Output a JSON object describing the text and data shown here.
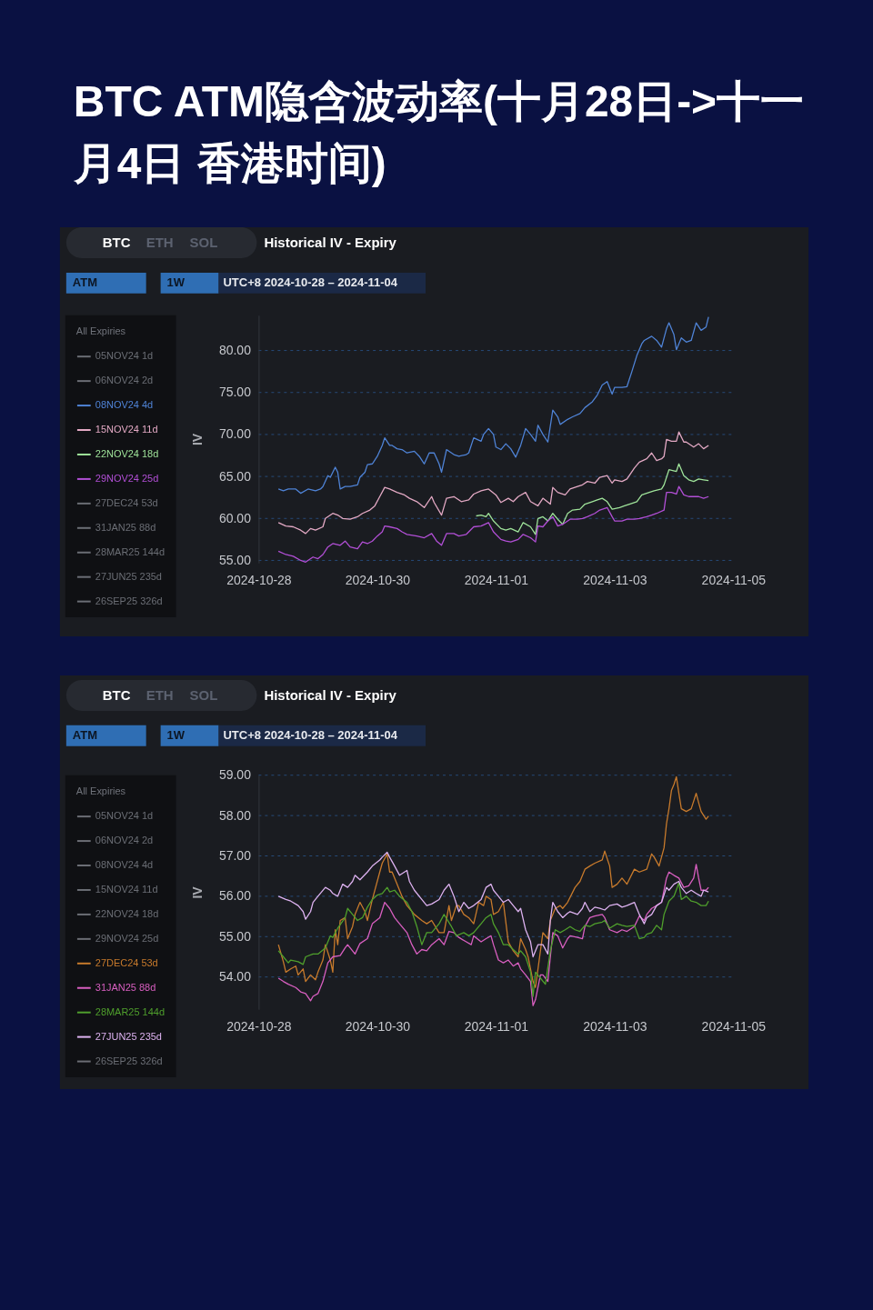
{
  "chart_data": [
    {
      "type": "line",
      "title": "BTC ATM隐含波动率(十月28日->十一月4日 香港时间)",
      "subtitle": "Historical IV - Expiry",
      "ylabel": "IV",
      "legend_title": "All Expiries",
      "legend": "left",
      "grid": "y",
      "annotations": [
        "BTC",
        "ETH",
        "SOL",
        "ATM",
        "1W",
        "UTC+8 2024-10-28 – 2024-11-04"
      ],
      "xlim": [
        "2024-10-28",
        "2024-11-05"
      ],
      "xticks": [
        "2024-10-28",
        "2024-10-30",
        "2024-11-01",
        "2024-11-03",
        "2024-11-05"
      ],
      "ylim": [
        54.7,
        84.2
      ],
      "yticks": [
        {
          "value": 55,
          "label": "55.00"
        },
        {
          "value": 60,
          "label": "60.00"
        },
        {
          "value": 65,
          "label": "65.00"
        },
        {
          "value": 70,
          "label": "70.00"
        },
        {
          "value": 75,
          "label": "75.00"
        },
        {
          "value": 80,
          "label": "80.00"
        }
      ],
      "series": [
        {
          "name": "05NOV24 1d",
          "color": "#6b6e75"
        },
        {
          "name": "06NOV24 2d",
          "color": "#6b6e75"
        },
        {
          "name": "08NOV24 4d",
          "color": "#4f83d6",
          "x": [
            "2024-10-28T08:00",
            "2024-10-28T10:00",
            "2024-10-28T12:00",
            "2024-10-28T15:00",
            "2024-10-28T17:00",
            "2024-10-28T20:00",
            "2024-10-28T23:00",
            "2024-10-29T01:00",
            "2024-10-29T02:00",
            "2024-10-29T04:00",
            "2024-10-29T05:00",
            "2024-10-29T07:00",
            "2024-10-29T08:00",
            "2024-10-29T09:00",
            "2024-10-29T11:00",
            "2024-10-29T13:00",
            "2024-10-29T16:00",
            "2024-10-29T17:00",
            "2024-10-29T19:00",
            "2024-10-29T20:00",
            "2024-10-29T22:00",
            "2024-10-30T00:00",
            "2024-10-30T02:00",
            "2024-10-30T03:00",
            "2024-10-30T05:00",
            "2024-10-30T06:00",
            "2024-10-30T08:00",
            "2024-10-30T10:00",
            "2024-10-30T12:00",
            "2024-10-30T15:00",
            "2024-10-30T17:00",
            "2024-10-30T19:00",
            "2024-10-30T21:00",
            "2024-10-30T23:00",
            "2024-10-31T01:00",
            "2024-10-31T02:00",
            "2024-10-31T04:00",
            "2024-10-31T07:00",
            "2024-10-31T09:00",
            "2024-10-31T12:00",
            "2024-10-31T13:00",
            "2024-10-31T15:00",
            "2024-10-31T18:00",
            "2024-10-31T19:00",
            "2024-10-31T21:00",
            "2024-10-31T23:00",
            "2024-11-01T00:00",
            "2024-11-01T02:00",
            "2024-11-01T04:00",
            "2024-11-01T06:00",
            "2024-11-01T08:00",
            "2024-11-01T10:00",
            "2024-11-01T12:00",
            "2024-11-01T14:00",
            "2024-11-01T16:00",
            "2024-11-01T17:00",
            "2024-11-01T19:00",
            "2024-11-01T21:00",
            "2024-11-01T23:00",
            "2024-11-02T01:00",
            "2024-11-02T02:00",
            "2024-11-02T05:00",
            "2024-11-02T07:00",
            "2024-11-02T10:00",
            "2024-11-02T12:00",
            "2024-11-02T15:00",
            "2024-11-02T17:00",
            "2024-11-02T19:00",
            "2024-11-02T21:00",
            "2024-11-02T23:00",
            "2024-11-03T00:00",
            "2024-11-03T03:00",
            "2024-11-03T05:00",
            "2024-11-03T07:00",
            "2024-11-03T09:00",
            "2024-11-03T11:00",
            "2024-11-03T12:00",
            "2024-11-03T15:00",
            "2024-11-03T17:00",
            "2024-11-03T19:00",
            "2024-11-03T21:00",
            "2024-11-03T22:00",
            "2024-11-04T00:00",
            "2024-11-04T01:00",
            "2024-11-04T03:00",
            "2024-11-04T05:00",
            "2024-11-04T07:00",
            "2024-11-04T09:00",
            "2024-11-04T11:00",
            "2024-11-04T13:00",
            "2024-11-04T14:00"
          ],
          "values": [
            63.5,
            63.3,
            63.5,
            63.5,
            63.0,
            63.5,
            63.3,
            63.5,
            63.8,
            65.1,
            64.9,
            66.1,
            65.5,
            63.5,
            63.8,
            63.8,
            64.0,
            64.9,
            65.5,
            66.4,
            66.5,
            67.4,
            68.7,
            69.6,
            68.7,
            68.7,
            68.3,
            68.2,
            67.8,
            68.0,
            67.4,
            66.5,
            67.8,
            67.8,
            66.5,
            65.5,
            68.2,
            67.6,
            67.4,
            67.6,
            67.8,
            69.6,
            69.2,
            70.0,
            70.7,
            70.0,
            68.5,
            68.2,
            68.9,
            68.3,
            67.3,
            68.7,
            70.7,
            70.0,
            69.2,
            71.1,
            70.0,
            69.1,
            72.9,
            72.1,
            71.2,
            71.8,
            72.1,
            72.5,
            73.2,
            73.9,
            74.7,
            75.9,
            76.3,
            74.8,
            75.6,
            75.6,
            75.7,
            77.5,
            79.4,
            80.8,
            81.2,
            81.7,
            81.2,
            80.4,
            82.6,
            83.3,
            81.9,
            80.1,
            81.5,
            81.0,
            81.2,
            83.3,
            82.4,
            82.8,
            84.0
          ]
        },
        {
          "name": "15NOV24 11d",
          "color": "#e3a9c4",
          "x": [
            "2024-10-28T08:00",
            "2024-10-28T11:00",
            "2024-10-28T14:00",
            "2024-10-28T17:00",
            "2024-10-28T19:00",
            "2024-10-28T21:00",
            "2024-10-28T23:00",
            "2024-10-29T02:00",
            "2024-10-29T03:00",
            "2024-10-29T06:00",
            "2024-10-29T08:00",
            "2024-10-29T10:00",
            "2024-10-29T13:00",
            "2024-10-29T16:00",
            "2024-10-29T18:00",
            "2024-10-29T21:00",
            "2024-10-29T23:00",
            "2024-10-30T01:00",
            "2024-10-30T03:00",
            "2024-10-30T05:00",
            "2024-10-30T08:00",
            "2024-10-30T11:00",
            "2024-10-30T13:00",
            "2024-10-30T16:00",
            "2024-10-30T19:00",
            "2024-10-30T22:00",
            "2024-10-30T23:00",
            "2024-10-31T02:00",
            "2024-10-31T04:00",
            "2024-10-31T07:00",
            "2024-10-31T10:00",
            "2024-10-31T13:00",
            "2024-10-31T15:00",
            "2024-10-31T18:00",
            "2024-10-31T21:00",
            "2024-11-01T00:00",
            "2024-11-01T02:00",
            "2024-11-01T05:00",
            "2024-11-01T07:00",
            "2024-11-01T09:00",
            "2024-11-01T12:00",
            "2024-11-01T14:00",
            "2024-11-01T17:00",
            "2024-11-01T19:00",
            "2024-11-01T22:00",
            "2024-11-01T23:00",
            "2024-11-02T01:00",
            "2024-11-02T04:00",
            "2024-11-02T06:00",
            "2024-11-02T09:00",
            "2024-11-02T11:00",
            "2024-11-02T13:00",
            "2024-11-02T16:00",
            "2024-11-02T18:00",
            "2024-11-02T21:00",
            "2024-11-02T23:00",
            "2024-11-03T00:00",
            "2024-11-03T03:00",
            "2024-11-03T05:00",
            "2024-11-03T08:00",
            "2024-11-03T10:00",
            "2024-11-03T13:00",
            "2024-11-03T15:00",
            "2024-11-03T17:00",
            "2024-11-03T19:00",
            "2024-11-03T20:00",
            "2024-11-03T21:00",
            "2024-11-03T23:00",
            "2024-11-04T01:00",
            "2024-11-04T02:00",
            "2024-11-04T04:00",
            "2024-11-04T05:00",
            "2024-11-04T08:00",
            "2024-11-04T10:00",
            "2024-11-04T12:00",
            "2024-11-04T14:00"
          ],
          "values": [
            59.5,
            59.1,
            59.0,
            58.6,
            58.2,
            58.8,
            58.6,
            59.0,
            60.0,
            60.6,
            60.4,
            60.0,
            59.9,
            60.2,
            60.6,
            61.0,
            61.5,
            62.6,
            63.7,
            63.5,
            63.1,
            62.8,
            62.4,
            62.0,
            61.3,
            62.6,
            61.9,
            60.4,
            62.4,
            62.6,
            62.0,
            62.2,
            62.9,
            63.3,
            63.5,
            62.8,
            61.9,
            62.4,
            62.0,
            62.6,
            63.1,
            62.0,
            61.5,
            62.4,
            61.7,
            63.7,
            63.1,
            62.8,
            63.5,
            63.8,
            64.0,
            64.4,
            64.2,
            64.9,
            65.1,
            64.2,
            64.6,
            64.4,
            64.7,
            66.0,
            66.7,
            67.1,
            67.8,
            66.9,
            67.1,
            67.4,
            69.4,
            69.2,
            69.2,
            70.3,
            69.1,
            69.1,
            68.5,
            68.9,
            68.3,
            68.7
          ]
        },
        {
          "name": "22NOV24 18d",
          "color": "#9fe39a",
          "x": [
            "2024-10-31T16:00",
            "2024-10-31T18:00",
            "2024-10-31T20:00",
            "2024-10-31T21:00",
            "2024-10-31T23:00",
            "2024-11-01T02:00",
            "2024-11-01T04:00",
            "2024-11-01T06:00",
            "2024-11-01T09:00",
            "2024-11-01T11:00",
            "2024-11-01T14:00",
            "2024-11-01T16:00",
            "2024-11-01T17:00",
            "2024-11-01T19:00",
            "2024-11-01T21:00",
            "2024-11-01T23:00",
            "2024-11-02T01:00",
            "2024-11-02T03:00",
            "2024-11-02T05:00",
            "2024-11-02T07:00",
            "2024-11-02T10:00",
            "2024-11-02T12:00",
            "2024-11-02T15:00",
            "2024-11-02T17:00",
            "2024-11-02T19:00",
            "2024-11-02T21:00",
            "2024-11-02T23:00",
            "2024-11-03T02:00",
            "2024-11-03T04:00",
            "2024-11-03T06:00",
            "2024-11-03T09:00",
            "2024-11-03T11:00",
            "2024-11-03T14:00",
            "2024-11-03T16:00",
            "2024-11-03T19:00",
            "2024-11-03T20:00",
            "2024-11-03T22:00",
            "2024-11-04T01:00",
            "2024-11-04T02:00",
            "2024-11-04T04:00",
            "2024-11-04T06:00",
            "2024-11-04T08:00",
            "2024-11-04T10:00",
            "2024-11-04T12:00",
            "2024-11-04T14:00"
          ],
          "values": [
            60.3,
            60.4,
            60.2,
            60.6,
            59.7,
            58.8,
            58.6,
            58.8,
            58.4,
            59.5,
            59.0,
            58.1,
            60.0,
            60.2,
            59.7,
            60.6,
            59.9,
            59.3,
            60.6,
            61.0,
            61.1,
            61.7,
            62.0,
            62.2,
            62.4,
            62.0,
            61.1,
            61.3,
            61.5,
            61.7,
            62.0,
            62.8,
            63.1,
            63.3,
            63.5,
            64.0,
            65.8,
            65.6,
            66.5,
            65.1,
            64.6,
            64.4,
            64.7,
            64.6,
            64.5
          ]
        },
        {
          "name": "29NOV24 25d",
          "color": "#b24fd6",
          "x": [
            "2024-10-28T08:00",
            "2024-10-28T11:00",
            "2024-10-28T14:00",
            "2024-10-28T17:00",
            "2024-10-28T19:00",
            "2024-10-28T22:00",
            "2024-10-29T00:00",
            "2024-10-29T02:00",
            "2024-10-29T04:00",
            "2024-10-29T06:00",
            "2024-10-29T09:00",
            "2024-10-29T11:00",
            "2024-10-29T13:00",
            "2024-10-29T16:00",
            "2024-10-29T18:00",
            "2024-10-29T20:00",
            "2024-10-29T22:00",
            "2024-10-30T00:00",
            "2024-10-30T02:00",
            "2024-10-30T03:00",
            "2024-10-30T05:00",
            "2024-10-30T08:00",
            "2024-10-30T10:00",
            "2024-10-30T12:00",
            "2024-10-30T16:00",
            "2024-10-30T19:00",
            "2024-10-30T22:00",
            "2024-10-31T00:00",
            "2024-10-31T02:00",
            "2024-10-31T04:00",
            "2024-10-31T07:00",
            "2024-10-31T09:00",
            "2024-10-31T12:00",
            "2024-10-31T15:00",
            "2024-10-31T18:00",
            "2024-10-31T21:00",
            "2024-10-31T23:00",
            "2024-11-01T02:00",
            "2024-11-01T04:00",
            "2024-11-01T06:00",
            "2024-11-01T09:00",
            "2024-11-01T11:00",
            "2024-11-01T14:00",
            "2024-11-01T16:00",
            "2024-11-01T17:00",
            "2024-11-01T19:00",
            "2024-11-01T21:00",
            "2024-11-01T23:00",
            "2024-11-02T01:00",
            "2024-11-02T03:00",
            "2024-11-02T06:00",
            "2024-11-02T09:00",
            "2024-11-02T11:00",
            "2024-11-02T13:00",
            "2024-11-02T16:00",
            "2024-11-02T18:00",
            "2024-11-02T21:00",
            "2024-11-02T23:00",
            "2024-11-03T00:00",
            "2024-11-03T03:00",
            "2024-11-03T05:00",
            "2024-11-03T08:00",
            "2024-11-03T10:00",
            "2024-11-03T13:00",
            "2024-11-03T15:00",
            "2024-11-03T17:00",
            "2024-11-03T20:00",
            "2024-11-03T21:00",
            "2024-11-03T23:00",
            "2024-11-04T01:00",
            "2024-11-04T02:00",
            "2024-11-04T04:00",
            "2024-11-04T06:00",
            "2024-11-04T08:00",
            "2024-11-04T10:00",
            "2024-11-04T12:00",
            "2024-11-04T14:00"
          ],
          "values": [
            56.1,
            55.7,
            55.5,
            55.0,
            54.8,
            55.4,
            55.2,
            55.7,
            56.6,
            57.0,
            56.8,
            57.3,
            56.6,
            56.4,
            57.2,
            57.0,
            57.3,
            57.9,
            58.4,
            59.1,
            59.0,
            58.8,
            58.4,
            58.1,
            57.9,
            57.7,
            58.2,
            57.3,
            56.8,
            58.2,
            58.2,
            57.9,
            58.1,
            59.0,
            59.1,
            59.5,
            58.4,
            57.5,
            57.3,
            57.2,
            57.5,
            58.1,
            57.7,
            57.2,
            59.1,
            59.0,
            59.7,
            60.2,
            59.1,
            59.3,
            59.9,
            59.9,
            60.0,
            60.2,
            60.6,
            61.0,
            61.3,
            60.2,
            59.7,
            59.7,
            59.9,
            59.9,
            60.0,
            60.2,
            60.4,
            60.6,
            61.0,
            63.1,
            63.1,
            62.9,
            63.8,
            62.8,
            62.6,
            62.6,
            62.6,
            62.4,
            62.6
          ]
        },
        {
          "name": "27DEC24 53d",
          "color": "#6b6e75"
        },
        {
          "name": "31JAN25 88d",
          "color": "#6b6e75"
        },
        {
          "name": "28MAR25 144d",
          "color": "#6b6e75"
        },
        {
          "name": "27JUN25 235d",
          "color": "#6b6e75"
        },
        {
          "name": "26SEP25 326d",
          "color": "#6b6e75"
        }
      ]
    },
    {
      "type": "line",
      "title": "Historical IV - Expiry",
      "ylabel": "IV",
      "legend_title": "All Expiries",
      "legend": "left",
      "grid": "y",
      "annotations": [
        "BTC",
        "ETH",
        "SOL",
        "ATM",
        "1W",
        "UTC+8 2024-10-28 – 2024-11-04"
      ],
      "xlim": [
        "2024-10-28",
        "2024-11-05"
      ],
      "xticks": [
        "2024-10-28",
        "2024-10-30",
        "2024-11-01",
        "2024-11-03",
        "2024-11-05"
      ],
      "ylim": [
        53.2,
        59
      ],
      "yticks": [
        {
          "value": 54,
          "label": "54.00"
        },
        {
          "value": 55,
          "label": "55.00"
        },
        {
          "value": 56,
          "label": "56.00"
        },
        {
          "value": 57,
          "label": "57.00"
        },
        {
          "value": 58,
          "label": "58.00"
        },
        {
          "value": 59,
          "label": "59.00"
        }
      ],
      "series": [
        {
          "name": "05NOV24 1d",
          "color": "#6b6e75"
        },
        {
          "name": "06NOV24 2d",
          "color": "#6b6e75"
        },
        {
          "name": "08NOV24 4d",
          "color": "#6b6e75"
        },
        {
          "name": "15NOV24 11d",
          "color": "#6b6e75"
        },
        {
          "name": "22NOV24 18d",
          "color": "#6b6e75"
        },
        {
          "name": "29NOV24 25d",
          "color": "#6b6e75"
        },
        {
          "name": "27DEC24 53d",
          "color": "#c77a2c",
          "x": [
            "2024-10-28T08:00",
            "2024-10-28T10:00",
            "2024-10-28T11:00",
            "2024-10-28T13:00",
            "2024-10-28T15:00",
            "2024-10-28T16:00",
            "2024-10-28T18:00",
            "2024-10-28T19:00",
            "2024-10-28T21:00",
            "2024-10-28T23:00",
            "2024-10-29T00:00",
            "2024-10-29T02:00",
            "2024-10-29T03:00",
            "2024-10-29T05:00",
            "2024-10-29T06:00",
            "2024-10-29T07:00",
            "2024-10-29T08:00",
            "2024-10-29T09:00",
            "2024-10-29T11:00",
            "2024-10-29T12:00",
            "2024-10-29T14:00",
            "2024-10-29T15:00",
            "2024-10-29T17:00",
            "2024-10-29T19:00",
            "2024-10-29T20:00",
            "2024-10-29T22:00",
            "2024-10-30T01:00",
            "2024-10-30T02:00",
            "2024-10-30T04:00",
            "2024-10-30T05:00",
            "2024-10-30T06:00",
            "2024-10-30T08:00",
            "2024-10-30T10:00",
            "2024-10-30T12:00",
            "2024-10-30T13:00",
            "2024-10-30T15:00",
            "2024-10-30T18:00",
            "2024-10-30T20:00",
            "2024-10-30T22:00",
            "2024-10-31T01:00",
            "2024-10-31T03:00",
            "2024-10-31T05:00",
            "2024-10-31T06:00",
            "2024-10-31T08:00",
            "2024-10-31T09:00",
            "2024-10-31T11:00",
            "2024-10-31T13:00",
            "2024-10-31T15:00",
            "2024-10-31T17:00",
            "2024-10-31T19:00",
            "2024-10-31T20:00",
            "2024-10-31T22:00",
            "2024-10-31T23:00",
            "2024-11-01T01:00",
            "2024-11-01T03:00",
            "2024-11-01T05:00",
            "2024-11-01T07:00",
            "2024-11-01T09:00",
            "2024-11-01T10:00",
            "2024-11-01T12:00",
            "2024-11-01T13:00",
            "2024-11-01T15:00",
            "2024-11-01T16:00",
            "2024-11-01T18:00",
            "2024-11-01T19:00",
            "2024-11-01T21:00",
            "2024-11-01T22:00",
            "2024-11-02T00:00",
            "2024-11-02T02:00",
            "2024-11-02T03:00",
            "2024-11-02T05:00",
            "2024-11-02T08:00",
            "2024-11-02T10:00",
            "2024-11-02T12:00",
            "2024-11-02T14:00",
            "2024-11-02T16:00",
            "2024-11-02T19:00",
            "2024-11-02T20:00",
            "2024-11-02T22:00",
            "2024-11-02T23:00",
            "2024-11-03T01:00",
            "2024-11-03T03:00",
            "2024-11-03T05:00",
            "2024-11-03T08:00",
            "2024-11-03T10:00",
            "2024-11-03T13:00",
            "2024-11-03T15:00",
            "2024-11-03T16:00",
            "2024-11-03T18:00",
            "2024-11-03T20:00",
            "2024-11-03T21:00",
            "2024-11-03T22:00",
            "2024-11-03T23:00",
            "2024-11-04T00:00",
            "2024-11-04T01:00",
            "2024-11-04T02:00",
            "2024-11-04T03:00",
            "2024-11-04T05:00",
            "2024-11-04T07:00",
            "2024-11-04T09:00",
            "2024-11-04T10:00",
            "2024-11-04T11:00",
            "2024-11-04T13:00",
            "2024-11-04T14:00"
          ],
          "values": [
            54.8,
            54.38,
            54.12,
            54.2,
            54.27,
            54.05,
            54.2,
            53.89,
            54.05,
            53.93,
            54.12,
            54.42,
            54.8,
            54.42,
            54.12,
            55.17,
            54.8,
            55.4,
            55.47,
            54.95,
            55.25,
            55.55,
            55.85,
            55.62,
            55.4,
            55.92,
            56.6,
            56.82,
            57.05,
            56.6,
            56.6,
            56.3,
            56.0,
            55.77,
            55.7,
            55.55,
            55.4,
            55.32,
            55.4,
            55.1,
            55.1,
            55.77,
            55.4,
            55.77,
            55.77,
            55.55,
            55.47,
            55.32,
            55.85,
            55.77,
            56.0,
            55.92,
            55.55,
            55.62,
            55.85,
            54.87,
            54.65,
            54.5,
            54.95,
            54.68,
            54.5,
            53.89,
            53.74,
            54.65,
            55.1,
            54.95,
            55.4,
            55.7,
            55.77,
            55.7,
            55.85,
            56.22,
            56.37,
            56.67,
            56.75,
            56.82,
            56.9,
            57.12,
            56.75,
            56.22,
            56.3,
            56.45,
            56.3,
            56.67,
            56.6,
            56.67,
            57.05,
            56.97,
            56.75,
            57.2,
            57.8,
            58.17,
            58.62,
            58.77,
            58.96,
            58.55,
            58.17,
            58.1,
            58.17,
            58.55,
            58.32,
            58.1,
            57.91,
            57.99
          ]
        },
        {
          "name": "31JAN25 88d",
          "color": "#d85fc0",
          "x": [
            "2024-10-28T08:00",
            "2024-10-28T10:00",
            "2024-10-28T12:00",
            "2024-10-28T15:00",
            "2024-10-28T17:00",
            "2024-10-28T19:00",
            "2024-10-28T21:00",
            "2024-10-28T22:00",
            "2024-10-29T00:00",
            "2024-10-29T02:00",
            "2024-10-29T04:00",
            "2024-10-29T06:00",
            "2024-10-29T09:00",
            "2024-10-29T11:00",
            "2024-10-29T12:00",
            "2024-10-29T15:00",
            "2024-10-29T17:00",
            "2024-10-29T20:00",
            "2024-10-29T22:00",
            "2024-10-30T01:00",
            "2024-10-30T03:00",
            "2024-10-30T05:00",
            "2024-10-30T07:00",
            "2024-10-30T09:00",
            "2024-10-30T12:00",
            "2024-10-30T14:00",
            "2024-10-30T16:00",
            "2024-10-30T18:00",
            "2024-10-30T20:00",
            "2024-10-30T22:00",
            "2024-10-31T01:00",
            "2024-10-31T03:00",
            "2024-10-31T05:00",
            "2024-10-31T07:00",
            "2024-10-31T09:00",
            "2024-10-31T12:00",
            "2024-10-31T14:00",
            "2024-10-31T15:00",
            "2024-10-31T18:00",
            "2024-10-31T20:00",
            "2024-10-31T22:00",
            "2024-10-31T23:00",
            "2024-11-01T01:00",
            "2024-11-01T03:00",
            "2024-11-01T05:00",
            "2024-11-01T07:00",
            "2024-11-01T09:00",
            "2024-11-01T10:00",
            "2024-11-01T12:00",
            "2024-11-01T14:00",
            "2024-11-01T15:00",
            "2024-11-01T16:00",
            "2024-11-01T18:00",
            "2024-11-01T19:00",
            "2024-11-01T21:00",
            "2024-11-01T23:00",
            "2024-11-02T01:00",
            "2024-11-02T03:00",
            "2024-11-02T05:00",
            "2024-11-02T06:00",
            "2024-11-02T09:00",
            "2024-11-02T11:00",
            "2024-11-02T12:00",
            "2024-11-02T14:00",
            "2024-11-02T16:00",
            "2024-11-02T19:00",
            "2024-11-02T20:00",
            "2024-11-02T22:00",
            "2024-11-03T01:00",
            "2024-11-03T03:00",
            "2024-11-03T05:00",
            "2024-11-03T08:00",
            "2024-11-03T10:00",
            "2024-11-03T12:00",
            "2024-11-03T13:00",
            "2024-11-03T15:00",
            "2024-11-03T17:00",
            "2024-11-03T19:00",
            "2024-11-03T21:00",
            "2024-11-03T22:00",
            "2024-11-04T00:00",
            "2024-11-04T02:00",
            "2024-11-04T04:00",
            "2024-11-04T06:00",
            "2024-11-04T08:00",
            "2024-11-04T09:00",
            "2024-11-04T10:00",
            "2024-11-04T11:00",
            "2024-11-04T13:00",
            "2024-11-04T14:00"
          ],
          "values": [
            53.97,
            53.89,
            53.82,
            53.74,
            53.63,
            53.59,
            53.41,
            53.52,
            53.59,
            53.89,
            54.35,
            54.5,
            54.53,
            54.72,
            54.8,
            54.57,
            54.83,
            54.95,
            55.32,
            55.47,
            55.85,
            55.7,
            55.47,
            55.32,
            55.1,
            54.8,
            54.57,
            54.68,
            54.65,
            54.8,
            54.95,
            54.8,
            55.13,
            55.1,
            54.98,
            54.87,
            54.8,
            55.02,
            54.87,
            54.95,
            55.02,
            54.8,
            54.42,
            54.35,
            54.42,
            54.27,
            54.35,
            54.2,
            54.05,
            53.89,
            53.29,
            53.44,
            54.05,
            54.05,
            53.89,
            55.1,
            55.02,
            54.72,
            54.95,
            55.02,
            54.98,
            54.95,
            55.25,
            55.47,
            55.51,
            55.55,
            55.47,
            55.17,
            55.1,
            55.17,
            55.13,
            55.25,
            55.51,
            55.4,
            55.55,
            55.7,
            55.77,
            55.85,
            56.45,
            56.6,
            56.52,
            56.45,
            56.22,
            56.26,
            56.45,
            56.79,
            56.45,
            56.15,
            56.15,
            56.22
          ]
        },
        {
          "name": "28MAR25 144d",
          "color": "#4f9f2c",
          "x": [
            "2024-10-28T08:00",
            "2024-10-28T10:00",
            "2024-10-28T12:00",
            "2024-10-28T13:00",
            "2024-10-28T16:00",
            "2024-10-28T18:00",
            "2024-10-28T19:00",
            "2024-10-28T22:00",
            "2024-10-29T00:00",
            "2024-10-29T03:00",
            "2024-10-29T05:00",
            "2024-10-29T06:00",
            "2024-10-29T08:00",
            "2024-10-29T11:00",
            "2024-10-29T12:00",
            "2024-10-29T14:00",
            "2024-10-29T16:00",
            "2024-10-29T18:00",
            "2024-10-29T20:00",
            "2024-10-29T22:00",
            "2024-10-30T00:00",
            "2024-10-30T02:00",
            "2024-10-30T04:00",
            "2024-10-30T05:00",
            "2024-10-30T07:00",
            "2024-10-30T09:00",
            "2024-10-30T12:00",
            "2024-10-30T14:00",
            "2024-10-30T16:00",
            "2024-10-30T18:00",
            "2024-10-30T20:00",
            "2024-10-30T22:00",
            "2024-10-31T01:00",
            "2024-10-31T03:00",
            "2024-10-31T06:00",
            "2024-10-31T08:00",
            "2024-10-31T11:00",
            "2024-10-31T13:00",
            "2024-10-31T15:00",
            "2024-10-31T18:00",
            "2024-10-31T20:00",
            "2024-10-31T22:00",
            "2024-10-31T23:00",
            "2024-11-01T01:00",
            "2024-11-01T03:00",
            "2024-11-01T05:00",
            "2024-11-01T07:00",
            "2024-11-01T09:00",
            "2024-11-01T10:00",
            "2024-11-01T12:00",
            "2024-11-01T14:00",
            "2024-11-01T15:00",
            "2024-11-01T16:00",
            "2024-11-01T18:00",
            "2024-11-01T20:00",
            "2024-11-01T22:00",
            "2024-11-02T00:00",
            "2024-11-02T02:00",
            "2024-11-02T04:00",
            "2024-11-02T06:00",
            "2024-11-02T08:00",
            "2024-11-02T10:00",
            "2024-11-02T12:00",
            "2024-11-02T14:00",
            "2024-11-02T16:00",
            "2024-11-02T19:00",
            "2024-11-02T20:00",
            "2024-11-02T22:00",
            "2024-11-03T01:00",
            "2024-11-03T03:00",
            "2024-11-03T05:00",
            "2024-11-03T08:00",
            "2024-11-03T10:00",
            "2024-11-03T12:00",
            "2024-11-03T13:00",
            "2024-11-03T15:00",
            "2024-11-03T17:00",
            "2024-11-03T19:00",
            "2024-11-03T20:00",
            "2024-11-03T22:00",
            "2024-11-04T00:00",
            "2024-11-04T02:00",
            "2024-11-04T03:00",
            "2024-11-04T05:00",
            "2024-11-04T07:00",
            "2024-11-04T09:00",
            "2024-11-04T11:00",
            "2024-11-04T13:00",
            "2024-11-04T14:00"
          ],
          "values": [
            54.65,
            54.5,
            54.35,
            54.42,
            54.38,
            54.31,
            54.5,
            54.57,
            54.57,
            54.72,
            55.02,
            54.98,
            55.21,
            55.47,
            55.7,
            55.55,
            55.4,
            55.47,
            55.73,
            55.92,
            56.03,
            56.07,
            56.22,
            56.11,
            56.15,
            56.0,
            55.85,
            55.62,
            55.25,
            54.8,
            55.1,
            55.1,
            55.32,
            55.55,
            55.25,
            55.02,
            55.1,
            55.02,
            55.1,
            55.32,
            55.47,
            55.55,
            55.32,
            55.1,
            54.8,
            54.8,
            54.68,
            54.57,
            54.65,
            54.5,
            54.12,
            53.52,
            54.12,
            53.97,
            53.82,
            54.65,
            55.17,
            55.1,
            55.17,
            55.25,
            55.17,
            55.13,
            55.28,
            55.25,
            55.32,
            55.36,
            55.4,
            55.21,
            55.32,
            55.28,
            55.25,
            55.28,
            54.95,
            54.98,
            55.06,
            55.1,
            55.28,
            55.17,
            55.55,
            55.88,
            56.0,
            56.33,
            55.92,
            56.0,
            55.88,
            55.85,
            55.77,
            55.77,
            55.88
          ]
        },
        {
          "name": "27JUN25 235d",
          "color": "#ddb2f0",
          "x": [
            "2024-10-28T08:00",
            "2024-10-28T11:00",
            "2024-10-28T13:00",
            "2024-10-28T16:00",
            "2024-10-28T18:00",
            "2024-10-28T19:00",
            "2024-10-28T21:00",
            "2024-10-28T22:00",
            "2024-10-29T00:00",
            "2024-10-29T03:00",
            "2024-10-29T05:00",
            "2024-10-29T06:00",
            "2024-10-29T08:00",
            "2024-10-29T10:00",
            "2024-10-29T12:00",
            "2024-10-29T14:00",
            "2024-10-29T15:00",
            "2024-10-29T17:00",
            "2024-10-29T20:00",
            "2024-10-29T22:00",
            "2024-10-30T01:00",
            "2024-10-30T02:00",
            "2024-10-30T04:00",
            "2024-10-30T05:00",
            "2024-10-30T07:00",
            "2024-10-30T09:00",
            "2024-10-30T12:00",
            "2024-10-30T13:00",
            "2024-10-30T15:00",
            "2024-10-30T18:00",
            "2024-10-30T20:00",
            "2024-10-30T22:00",
            "2024-10-31T01:00",
            "2024-10-31T03:00",
            "2024-10-31T05:00",
            "2024-10-31T07:00",
            "2024-10-31T09:00",
            "2024-10-31T11:00",
            "2024-10-31T13:00",
            "2024-10-31T15:00",
            "2024-10-31T18:00",
            "2024-10-31T20:00",
            "2024-10-31T22:00",
            "2024-10-31T23:00",
            "2024-11-01T01:00",
            "2024-11-01T03:00",
            "2024-11-01T05:00",
            "2024-11-01T07:00",
            "2024-11-01T09:00",
            "2024-11-01T10:00",
            "2024-11-01T12:00",
            "2024-11-01T14:00",
            "2024-11-01T15:00",
            "2024-11-01T17:00",
            "2024-11-01T19:00",
            "2024-11-01T21:00",
            "2024-11-01T22:00",
            "2024-11-01T23:00",
            "2024-11-02T01:00",
            "2024-11-02T03:00",
            "2024-11-02T05:00",
            "2024-11-02T06:00",
            "2024-11-02T09:00",
            "2024-11-02T11:00",
            "2024-11-02T12:00",
            "2024-11-02T14:00",
            "2024-11-02T16:00",
            "2024-11-02T18:00",
            "2024-11-02T20:00",
            "2024-11-02T22:00",
            "2024-11-03T01:00",
            "2024-11-03T03:00",
            "2024-11-03T05:00",
            "2024-11-03T08:00",
            "2024-11-03T09:00",
            "2024-11-03T10:00",
            "2024-11-03T12:00",
            "2024-11-03T13:00",
            "2024-11-03T15:00",
            "2024-11-03T17:00",
            "2024-11-03T19:00",
            "2024-11-03T21:00",
            "2024-11-03T22:00",
            "2024-11-04T00:00",
            "2024-11-04T02:00",
            "2024-11-04T03:00",
            "2024-11-04T05:00",
            "2024-11-04T07:00",
            "2024-11-04T09:00",
            "2024-11-04T11:00",
            "2024-11-04T12:00",
            "2024-11-04T14:00"
          ],
          "values": [
            56.0,
            55.92,
            55.88,
            55.77,
            55.62,
            55.43,
            55.62,
            55.85,
            56.0,
            56.22,
            56.15,
            56.07,
            56.0,
            56.3,
            56.22,
            56.37,
            56.52,
            56.41,
            56.6,
            56.75,
            56.9,
            56.97,
            57.09,
            56.97,
            56.75,
            56.52,
            56.64,
            56.37,
            56.15,
            55.92,
            55.77,
            55.81,
            55.92,
            56.15,
            56.3,
            56.0,
            55.62,
            55.85,
            55.7,
            55.77,
            55.92,
            56.22,
            56.3,
            56.15,
            56.0,
            55.85,
            55.92,
            55.77,
            55.62,
            55.7,
            55.17,
            54.87,
            54.5,
            54.8,
            54.8,
            54.57,
            55.4,
            55.85,
            55.62,
            55.47,
            55.58,
            55.62,
            55.55,
            55.7,
            55.85,
            55.62,
            55.73,
            55.7,
            55.66,
            55.77,
            55.81,
            55.73,
            55.77,
            55.85,
            55.7,
            55.55,
            55.32,
            55.47,
            55.55,
            55.77,
            55.85,
            56.22,
            56.15,
            56.3,
            56.37,
            56.22,
            56.07,
            56.15,
            56.07,
            56.0,
            56.15,
            56.11
          ]
        },
        {
          "name": "26SEP25 326d",
          "color": "#6b6e75"
        }
      ]
    }
  ]
}
